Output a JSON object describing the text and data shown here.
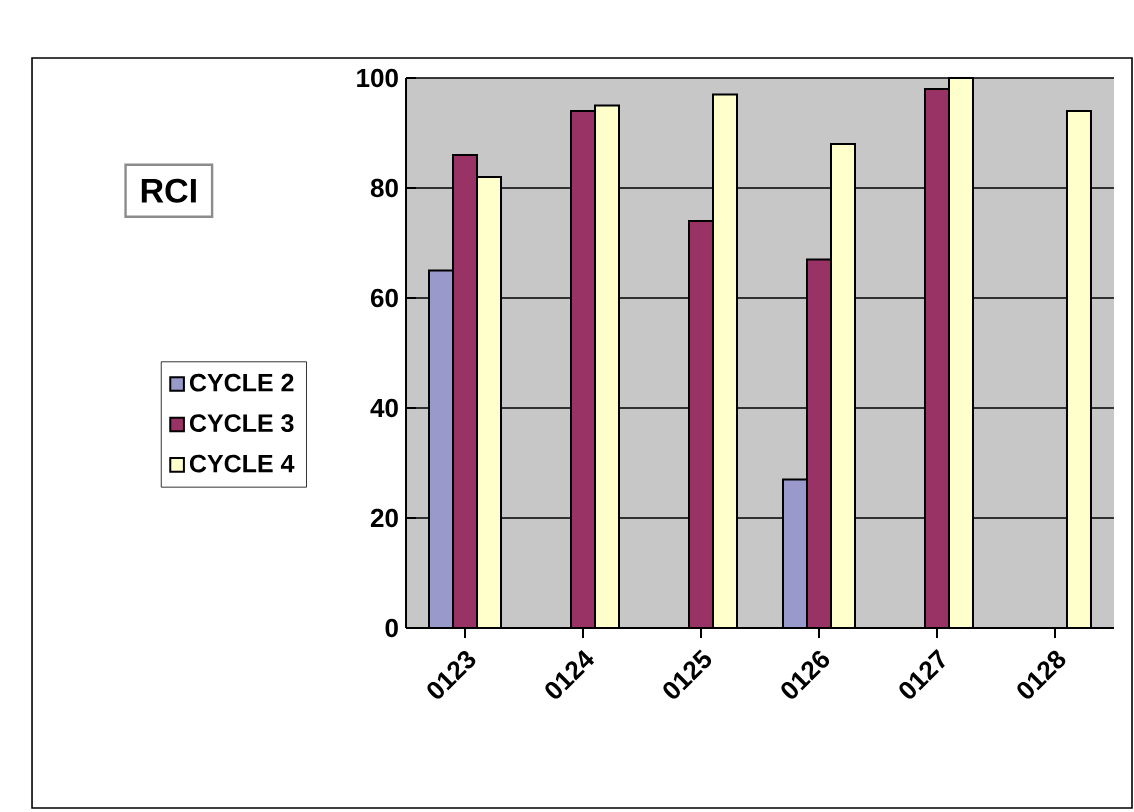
{
  "chart_data": {
    "type": "bar",
    "title": "RCI",
    "categories": [
      "0123",
      "0124",
      "0125",
      "0126",
      "0127",
      "0128"
    ],
    "series": [
      {
        "name": "CYCLE 2",
        "color": "#9999cc",
        "values": [
          65,
          null,
          null,
          27,
          null,
          null
        ]
      },
      {
        "name": "CYCLE 3",
        "color": "#993366",
        "values": [
          86,
          94,
          74,
          67,
          98,
          null
        ]
      },
      {
        "name": "CYCLE 4",
        "color": "#ffffcc",
        "values": [
          82,
          95,
          97,
          88,
          100,
          94
        ]
      }
    ],
    "ylim": [
      0,
      100
    ],
    "yticks": [
      0,
      20,
      40,
      60,
      80,
      100
    ],
    "grid": "y",
    "legend": "left"
  }
}
